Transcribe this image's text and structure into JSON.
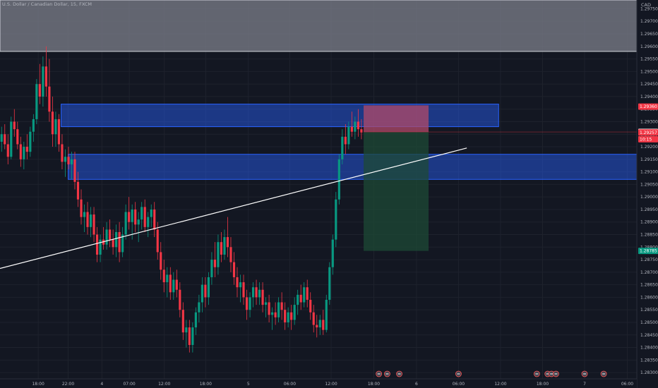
{
  "chart_data": {
    "type": "candlestick",
    "title": "U.S. Dollar / Canadian Dollar, 15, FXCM",
    "currency": "CAD",
    "y_ticks": [
      "1.29750",
      "1.29700",
      "1.29650",
      "1.29600",
      "1.29550",
      "1.29500",
      "1.29450",
      "1.29400",
      "1.29350",
      "1.29300",
      "1.29250",
      "1.29200",
      "1.29150",
      "1.29100",
      "1.29050",
      "1.29000",
      "1.28950",
      "1.28900",
      "1.28850",
      "1.28800",
      "1.28750",
      "1.28700",
      "1.28650",
      "1.28600",
      "1.28550",
      "1.28500",
      "1.28450",
      "1.28400",
      "1.28350",
      "1.28300"
    ],
    "x_ticks": [
      {
        "label": "18:00",
        "pos": 0.06
      },
      {
        "label": "22:00",
        "pos": 0.107
      },
      {
        "label": "4",
        "pos": 0.16
      },
      {
        "label": "07:00",
        "pos": 0.203
      },
      {
        "label": "12:00",
        "pos": 0.258
      },
      {
        "label": "18:00",
        "pos": 0.323
      },
      {
        "label": "5",
        "pos": 0.39
      },
      {
        "label": "06:00",
        "pos": 0.455
      },
      {
        "label": "12:00",
        "pos": 0.52
      },
      {
        "label": "18:00",
        "pos": 0.587
      },
      {
        "label": "6",
        "pos": 0.654
      },
      {
        "label": "06:00",
        "pos": 0.72
      },
      {
        "label": "12:00",
        "pos": 0.786
      },
      {
        "label": "18:00",
        "pos": 0.852
      },
      {
        "label": "7",
        "pos": 0.918
      },
      {
        "label": "06:00",
        "pos": 0.985
      }
    ],
    "ylim": [
      1.28275,
      1.29785
    ],
    "price_tags": [
      {
        "label": "1.29360",
        "value": 1.2936,
        "color": "#f23645"
      },
      {
        "label": "1.29259",
        "value": 1.29259,
        "color": "#ffffff",
        "text_color": "#131722"
      },
      {
        "label": "1.29257",
        "value": 1.29257,
        "color": "#f23645"
      },
      {
        "label": "10:15",
        "value": 1.2923,
        "color": "#f23645"
      },
      {
        "label": "1.28785",
        "value": 1.28785,
        "color": "#089981"
      }
    ],
    "zones": [
      {
        "name": "gray-zone",
        "x0": 0.0,
        "x1": 1.0,
        "y0": 1.2958,
        "y1": 1.29785,
        "color": "#787b86"
      },
      {
        "name": "supply-zone",
        "x0": 0.096,
        "x1": 0.783,
        "y0": 1.2928,
        "y1": 1.2937,
        "color": "#2962ff"
      },
      {
        "name": "demand-zone",
        "x0": 0.107,
        "x1": 1.0,
        "y0": 1.2907,
        "y1": 1.2917,
        "color": "#2962ff"
      }
    ],
    "trendline": {
      "x0": 0.0,
      "y0": 1.28715,
      "x1": 0.733,
      "y1": 1.29195,
      "color": "#ffffff"
    },
    "position": {
      "x0": 0.571,
      "x1": 0.673,
      "entry": 1.29259,
      "stop": 1.29365,
      "target": 1.28785,
      "stop_color": "#b14a6a",
      "target_color": "#1e4a35"
    },
    "candles": [
      {
        "x": 0.0025,
        "o": 1.2922,
        "h": 1.2928,
        "l": 1.2918,
        "c": 1.2925
      },
      {
        "x": 0.0075,
        "o": 1.2925,
        "h": 1.2929,
        "l": 1.2919,
        "c": 1.2921
      },
      {
        "x": 0.0125,
        "o": 1.2921,
        "h": 1.2925,
        "l": 1.2913,
        "c": 1.2916
      },
      {
        "x": 0.0175,
        "o": 1.2916,
        "h": 1.2932,
        "l": 1.2915,
        "c": 1.293
      },
      {
        "x": 0.0225,
        "o": 1.293,
        "h": 1.2935,
        "l": 1.2924,
        "c": 1.2927
      },
      {
        "x": 0.0275,
        "o": 1.2927,
        "h": 1.293,
        "l": 1.2919,
        "c": 1.2921
      },
      {
        "x": 0.0325,
        "o": 1.2921,
        "h": 1.2924,
        "l": 1.2912,
        "c": 1.2915
      },
      {
        "x": 0.0375,
        "o": 1.2915,
        "h": 1.2922,
        "l": 1.2911,
        "c": 1.292
      },
      {
        "x": 0.0425,
        "o": 1.292,
        "h": 1.2925,
        "l": 1.2915,
        "c": 1.2918
      },
      {
        "x": 0.0475,
        "o": 1.2918,
        "h": 1.2928,
        "l": 1.2916,
        "c": 1.2926
      },
      {
        "x": 0.0525,
        "o": 1.2926,
        "h": 1.2933,
        "l": 1.2922,
        "c": 1.2931
      },
      {
        "x": 0.0575,
        "o": 1.2931,
        "h": 1.2947,
        "l": 1.2929,
        "c": 1.2945
      },
      {
        "x": 0.0625,
        "o": 1.2945,
        "h": 1.2953,
        "l": 1.2937,
        "c": 1.294
      },
      {
        "x": 0.0675,
        "o": 1.294,
        "h": 1.2956,
        "l": 1.2936,
        "c": 1.2952
      },
      {
        "x": 0.0725,
        "o": 1.2952,
        "h": 1.296,
        "l": 1.294,
        "c": 1.2944
      },
      {
        "x": 0.0775,
        "o": 1.2944,
        "h": 1.2955,
        "l": 1.293,
        "c": 1.2934
      },
      {
        "x": 0.0825,
        "o": 1.2934,
        "h": 1.294,
        "l": 1.292,
        "c": 1.2925
      },
      {
        "x": 0.0875,
        "o": 1.2925,
        "h": 1.2934,
        "l": 1.292,
        "c": 1.2931
      },
      {
        "x": 0.0925,
        "o": 1.2931,
        "h": 1.2933,
        "l": 1.2918,
        "c": 1.2921
      },
      {
        "x": 0.0975,
        "o": 1.2921,
        "h": 1.2925,
        "l": 1.2911,
        "c": 1.2914
      },
      {
        "x": 0.1025,
        "o": 1.2914,
        "h": 1.2919,
        "l": 1.2908,
        "c": 1.2916
      },
      {
        "x": 0.1075,
        "o": 1.2916,
        "h": 1.292,
        "l": 1.2911,
        "c": 1.2913
      },
      {
        "x": 0.1125,
        "o": 1.2913,
        "h": 1.2918,
        "l": 1.2907,
        "c": 1.2915
      },
      {
        "x": 0.1175,
        "o": 1.2915,
        "h": 1.2918,
        "l": 1.2903,
        "c": 1.2906
      },
      {
        "x": 0.1225,
        "o": 1.2906,
        "h": 1.291,
        "l": 1.2896,
        "c": 1.2899
      },
      {
        "x": 0.1275,
        "o": 1.2899,
        "h": 1.2903,
        "l": 1.2889,
        "c": 1.2892
      },
      {
        "x": 0.1325,
        "o": 1.2892,
        "h": 1.2897,
        "l": 1.2886,
        "c": 1.2894
      },
      {
        "x": 0.1375,
        "o": 1.2894,
        "h": 1.2898,
        "l": 1.2885,
        "c": 1.2888
      },
      {
        "x": 0.1425,
        "o": 1.2888,
        "h": 1.2896,
        "l": 1.2884,
        "c": 1.2893
      },
      {
        "x": 0.1475,
        "o": 1.2893,
        "h": 1.2896,
        "l": 1.2882,
        "c": 1.2885
      },
      {
        "x": 0.1525,
        "o": 1.2885,
        "h": 1.2888,
        "l": 1.2874,
        "c": 1.2877
      },
      {
        "x": 0.1575,
        "o": 1.2877,
        "h": 1.2885,
        "l": 1.2874,
        "c": 1.2883
      },
      {
        "x": 0.1625,
        "o": 1.2883,
        "h": 1.2888,
        "l": 1.2879,
        "c": 1.2881
      },
      {
        "x": 0.1675,
        "o": 1.2881,
        "h": 1.289,
        "l": 1.2879,
        "c": 1.2887
      },
      {
        "x": 0.1725,
        "o": 1.2887,
        "h": 1.2891,
        "l": 1.288,
        "c": 1.2883
      },
      {
        "x": 0.1775,
        "o": 1.2883,
        "h": 1.2887,
        "l": 1.2877,
        "c": 1.288
      },
      {
        "x": 0.1825,
        "o": 1.288,
        "h": 1.2889,
        "l": 1.2876,
        "c": 1.2886
      },
      {
        "x": 0.1875,
        "o": 1.2886,
        "h": 1.289,
        "l": 1.2874,
        "c": 1.2878
      },
      {
        "x": 0.1925,
        "o": 1.2878,
        "h": 1.2888,
        "l": 1.2876,
        "c": 1.2885
      },
      {
        "x": 0.1975,
        "o": 1.2885,
        "h": 1.2897,
        "l": 1.2883,
        "c": 1.2894
      },
      {
        "x": 0.2025,
        "o": 1.2894,
        "h": 1.29,
        "l": 1.2887,
        "c": 1.289
      },
      {
        "x": 0.2075,
        "o": 1.289,
        "h": 1.2897,
        "l": 1.2883,
        "c": 1.2895
      },
      {
        "x": 0.2125,
        "o": 1.2895,
        "h": 1.2898,
        "l": 1.2886,
        "c": 1.2889
      },
      {
        "x": 0.2175,
        "o": 1.2889,
        "h": 1.2894,
        "l": 1.2882,
        "c": 1.2891
      },
      {
        "x": 0.2225,
        "o": 1.2891,
        "h": 1.2898,
        "l": 1.2887,
        "c": 1.2896
      },
      {
        "x": 0.2275,
        "o": 1.2896,
        "h": 1.2899,
        "l": 1.2886,
        "c": 1.2888
      },
      {
        "x": 0.2325,
        "o": 1.2888,
        "h": 1.2894,
        "l": 1.2884,
        "c": 1.2892
      },
      {
        "x": 0.2375,
        "o": 1.2892,
        "h": 1.2897,
        "l": 1.2888,
        "c": 1.2895
      },
      {
        "x": 0.2425,
        "o": 1.2895,
        "h": 1.2898,
        "l": 1.2884,
        "c": 1.2887
      },
      {
        "x": 0.2475,
        "o": 1.2887,
        "h": 1.289,
        "l": 1.2875,
        "c": 1.2878
      },
      {
        "x": 0.2525,
        "o": 1.2878,
        "h": 1.2882,
        "l": 1.2867,
        "c": 1.2871
      },
      {
        "x": 0.2575,
        "o": 1.2871,
        "h": 1.2875,
        "l": 1.2862,
        "c": 1.2866
      },
      {
        "x": 0.2625,
        "o": 1.2866,
        "h": 1.2872,
        "l": 1.286,
        "c": 1.2869
      },
      {
        "x": 0.2675,
        "o": 1.2869,
        "h": 1.2872,
        "l": 1.2859,
        "c": 1.2862
      },
      {
        "x": 0.2725,
        "o": 1.2862,
        "h": 1.287,
        "l": 1.2859,
        "c": 1.2867
      },
      {
        "x": 0.2775,
        "o": 1.2867,
        "h": 1.2871,
        "l": 1.286,
        "c": 1.2863
      },
      {
        "x": 0.2825,
        "o": 1.2863,
        "h": 1.2866,
        "l": 1.2852,
        "c": 1.2855
      },
      {
        "x": 0.2875,
        "o": 1.2855,
        "h": 1.2858,
        "l": 1.2843,
        "c": 1.2846
      },
      {
        "x": 0.2925,
        "o": 1.2846,
        "h": 1.2851,
        "l": 1.284,
        "c": 1.2848
      },
      {
        "x": 0.2975,
        "o": 1.2848,
        "h": 1.2851,
        "l": 1.2838,
        "c": 1.2841
      },
      {
        "x": 0.3025,
        "o": 1.2841,
        "h": 1.285,
        "l": 1.2838,
        "c": 1.2848
      },
      {
        "x": 0.3075,
        "o": 1.2848,
        "h": 1.2856,
        "l": 1.2845,
        "c": 1.2854
      },
      {
        "x": 0.3125,
        "o": 1.2854,
        "h": 1.2861,
        "l": 1.285,
        "c": 1.2858
      },
      {
        "x": 0.3175,
        "o": 1.2858,
        "h": 1.2868,
        "l": 1.2854,
        "c": 1.2865
      },
      {
        "x": 0.3225,
        "o": 1.2865,
        "h": 1.2868,
        "l": 1.2856,
        "c": 1.286
      },
      {
        "x": 0.3275,
        "o": 1.286,
        "h": 1.287,
        "l": 1.2857,
        "c": 1.2868
      },
      {
        "x": 0.3325,
        "o": 1.2868,
        "h": 1.2878,
        "l": 1.2865,
        "c": 1.2875
      },
      {
        "x": 0.3375,
        "o": 1.2875,
        "h": 1.2882,
        "l": 1.2868,
        "c": 1.2872
      },
      {
        "x": 0.3425,
        "o": 1.2872,
        "h": 1.2885,
        "l": 1.2869,
        "c": 1.2882
      },
      {
        "x": 0.3475,
        "o": 1.2882,
        "h": 1.2886,
        "l": 1.2874,
        "c": 1.2877
      },
      {
        "x": 0.3525,
        "o": 1.2877,
        "h": 1.2887,
        "l": 1.2875,
        "c": 1.2884
      },
      {
        "x": 0.3575,
        "o": 1.2884,
        "h": 1.2892,
        "l": 1.2876,
        "c": 1.288
      },
      {
        "x": 0.3625,
        "o": 1.288,
        "h": 1.2884,
        "l": 1.287,
        "c": 1.2874
      },
      {
        "x": 0.3675,
        "o": 1.2874,
        "h": 1.2878,
        "l": 1.2865,
        "c": 1.2868
      },
      {
        "x": 0.3725,
        "o": 1.2868,
        "h": 1.2872,
        "l": 1.286,
        "c": 1.2864
      },
      {
        "x": 0.3775,
        "o": 1.2864,
        "h": 1.2869,
        "l": 1.2858,
        "c": 1.2866
      },
      {
        "x": 0.3825,
        "o": 1.2866,
        "h": 1.2869,
        "l": 1.2857,
        "c": 1.286
      },
      {
        "x": 0.3875,
        "o": 1.286,
        "h": 1.2863,
        "l": 1.2851,
        "c": 1.2855
      },
      {
        "x": 0.3925,
        "o": 1.2855,
        "h": 1.2862,
        "l": 1.2852,
        "c": 1.286
      },
      {
        "x": 0.3975,
        "o": 1.286,
        "h": 1.2866,
        "l": 1.2856,
        "c": 1.2864
      },
      {
        "x": 0.4025,
        "o": 1.2864,
        "h": 1.2867,
        "l": 1.2857,
        "c": 1.286
      },
      {
        "x": 0.4075,
        "o": 1.286,
        "h": 1.2866,
        "l": 1.2857,
        "c": 1.2863
      },
      {
        "x": 0.4125,
        "o": 1.2863,
        "h": 1.2866,
        "l": 1.2854,
        "c": 1.2857
      },
      {
        "x": 0.4175,
        "o": 1.2857,
        "h": 1.286,
        "l": 1.2852,
        "c": 1.2858
      },
      {
        "x": 0.4225,
        "o": 1.2858,
        "h": 1.2861,
        "l": 1.285,
        "c": 1.2853
      },
      {
        "x": 0.4275,
        "o": 1.2853,
        "h": 1.2856,
        "l": 1.2847,
        "c": 1.2854
      },
      {
        "x": 0.4325,
        "o": 1.2854,
        "h": 1.2858,
        "l": 1.2849,
        "c": 1.2852
      },
      {
        "x": 0.4375,
        "o": 1.2852,
        "h": 1.286,
        "l": 1.285,
        "c": 1.2858
      },
      {
        "x": 0.4425,
        "o": 1.2858,
        "h": 1.2862,
        "l": 1.2851,
        "c": 1.2855
      },
      {
        "x": 0.4475,
        "o": 1.2855,
        "h": 1.2858,
        "l": 1.2847,
        "c": 1.285
      },
      {
        "x": 0.4525,
        "o": 1.285,
        "h": 1.2856,
        "l": 1.2848,
        "c": 1.2854
      },
      {
        "x": 0.4575,
        "o": 1.2854,
        "h": 1.2857,
        "l": 1.2847,
        "c": 1.2851
      },
      {
        "x": 0.4625,
        "o": 1.2851,
        "h": 1.286,
        "l": 1.2849,
        "c": 1.2857
      },
      {
        "x": 0.4675,
        "o": 1.2857,
        "h": 1.2863,
        "l": 1.2853,
        "c": 1.2861
      },
      {
        "x": 0.4725,
        "o": 1.2861,
        "h": 1.2865,
        "l": 1.2855,
        "c": 1.2858
      },
      {
        "x": 0.4775,
        "o": 1.2858,
        "h": 1.2866,
        "l": 1.2856,
        "c": 1.2864
      },
      {
        "x": 0.4825,
        "o": 1.2864,
        "h": 1.2867,
        "l": 1.2856,
        "c": 1.2859
      },
      {
        "x": 0.4875,
        "o": 1.2859,
        "h": 1.2862,
        "l": 1.2851,
        "c": 1.2854
      },
      {
        "x": 0.4925,
        "o": 1.2854,
        "h": 1.2857,
        "l": 1.2846,
        "c": 1.2849
      },
      {
        "x": 0.4975,
        "o": 1.2849,
        "h": 1.2853,
        "l": 1.2844,
        "c": 1.2848
      },
      {
        "x": 0.5025,
        "o": 1.2848,
        "h": 1.2853,
        "l": 1.2845,
        "c": 1.2851
      },
      {
        "x": 0.5075,
        "o": 1.2851,
        "h": 1.2855,
        "l": 1.2845,
        "c": 1.2847
      },
      {
        "x": 0.5125,
        "o": 1.2847,
        "h": 1.2861,
        "l": 1.2846,
        "c": 1.2859
      },
      {
        "x": 0.5175,
        "o": 1.2859,
        "h": 1.2874,
        "l": 1.2857,
        "c": 1.2872
      },
      {
        "x": 0.5225,
        "o": 1.2872,
        "h": 1.2885,
        "l": 1.2869,
        "c": 1.2883
      },
      {
        "x": 0.5275,
        "o": 1.2883,
        "h": 1.2902,
        "l": 1.288,
        "c": 1.2899
      },
      {
        "x": 0.5325,
        "o": 1.2899,
        "h": 1.2917,
        "l": 1.2897,
        "c": 1.2915
      },
      {
        "x": 0.5375,
        "o": 1.2915,
        "h": 1.2927,
        "l": 1.2913,
        "c": 1.2924
      },
      {
        "x": 0.5425,
        "o": 1.2924,
        "h": 1.2929,
        "l": 1.2917,
        "c": 1.2921
      },
      {
        "x": 0.5475,
        "o": 1.2921,
        "h": 1.293,
        "l": 1.2919,
        "c": 1.2928
      },
      {
        "x": 0.5525,
        "o": 1.2928,
        "h": 1.2934,
        "l": 1.2924,
        "c": 1.2926
      },
      {
        "x": 0.5575,
        "o": 1.2926,
        "h": 1.2932,
        "l": 1.2923,
        "c": 1.293
      },
      {
        "x": 0.5625,
        "o": 1.293,
        "h": 1.2935,
        "l": 1.2924,
        "c": 1.2927
      },
      {
        "x": 0.5675,
        "o": 1.2927,
        "h": 1.2931,
        "l": 1.2923,
        "c": 1.29257
      }
    ]
  }
}
